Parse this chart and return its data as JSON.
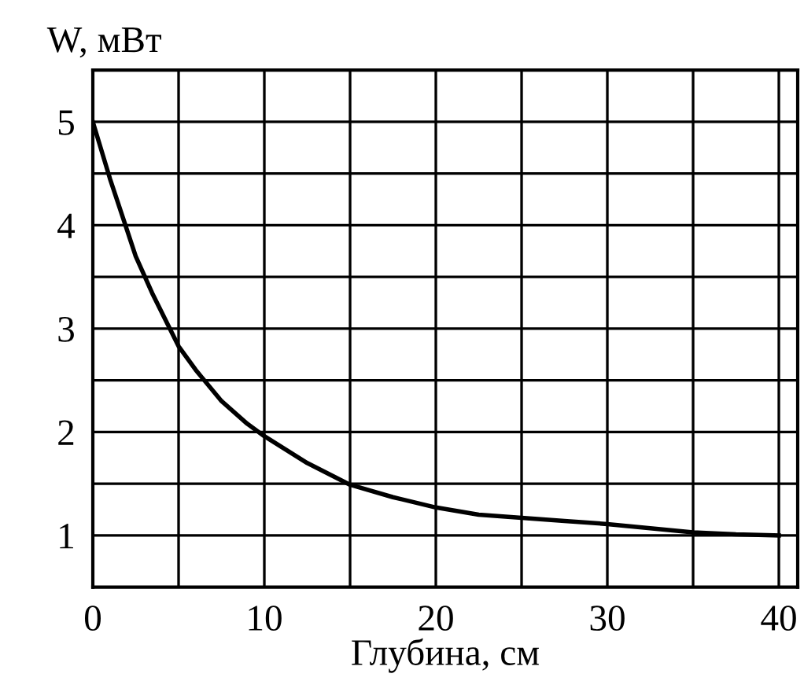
{
  "chart_data": {
    "type": "line",
    "ylabel": "W, мВт",
    "xlabel": "Глубина, см",
    "x": [
      0,
      1,
      1.9,
      2.5,
      3.5,
      4.4,
      5,
      6,
      7.5,
      9,
      10,
      12.5,
      15,
      17.5,
      20,
      22.5,
      25,
      27.5,
      30,
      32.5,
      35,
      37.5,
      40
    ],
    "series": [
      {
        "color": "#000000",
        "values": [
          5,
          4.45,
          4,
          3.7,
          3.33,
          3.03,
          2.83,
          2.6,
          2.3,
          2.08,
          1.96,
          1.7,
          1.49,
          1.37,
          1.27,
          1.2,
          1.17,
          1.14,
          1.11,
          1.07,
          1.03,
          1.01,
          1.0
        ]
      }
    ],
    "xlim": [
      0,
      41.1
    ],
    "ylim": [
      0.5,
      5.5
    ],
    "xticks": [
      0,
      {
        "value": 5,
        "label": null
      },
      10,
      {
        "value": 15,
        "label": null
      },
      20,
      {
        "value": 25,
        "label": null
      },
      30,
      {
        "value": 35,
        "label": null
      },
      40
    ],
    "yticks": [
      {
        "value": 1.5,
        "label": null
      },
      1,
      {
        "value": 2.5,
        "label": null
      },
      2,
      {
        "value": 3.5,
        "label": null
      },
      3,
      {
        "value": 4.5,
        "label": null
      },
      4,
      5
    ],
    "grid": true,
    "marker": "none",
    "line_style": "solid",
    "legend": false
  }
}
